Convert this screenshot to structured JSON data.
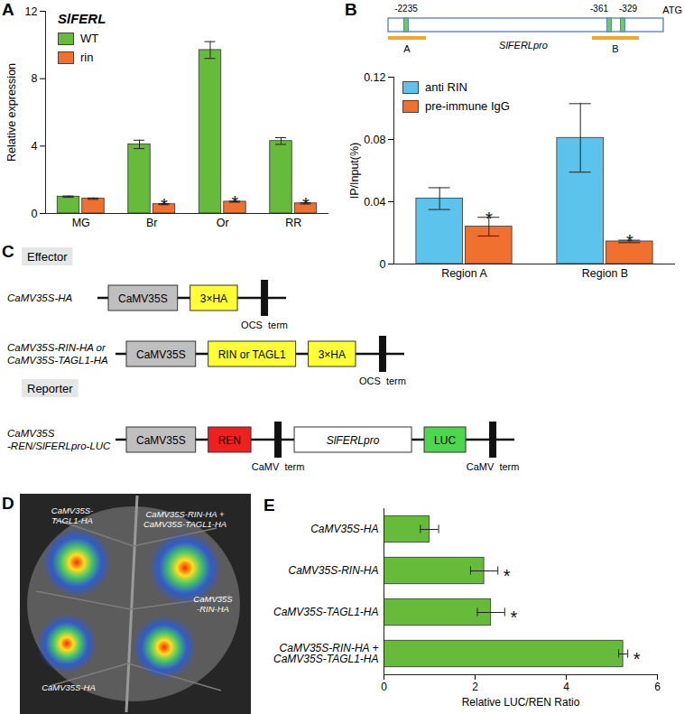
{
  "chart_data": [
    {
      "panel": "A",
      "type": "bar",
      "title": "SlFERL",
      "y_label": "Relative expression",
      "categories": [
        "MG",
        "Br",
        "Or",
        "RR"
      ],
      "series": [
        {
          "name": "WT",
          "color": "#67bb3a",
          "values": [
            1.0,
            4.1,
            9.7,
            4.3
          ],
          "errors": [
            0.04,
            0.25,
            0.5,
            0.2
          ]
        },
        {
          "name": "rin",
          "color": "#f07030",
          "values": [
            0.88,
            0.55,
            0.7,
            0.6
          ],
          "errors": [
            0.04,
            0.03,
            0.03,
            0.04
          ],
          "significance": [
            null,
            "*",
            "*",
            "*"
          ]
        }
      ],
      "ylim": [
        0,
        12
      ],
      "yticks": [
        0,
        4,
        8,
        12
      ],
      "legend": "top-left"
    },
    {
      "panel": "B",
      "type": "bar",
      "y_label": "IP/Input(%)",
      "categories": [
        "Region A",
        "Region B"
      ],
      "series": [
        {
          "name": "anti RIN",
          "color": "#5cc4ec",
          "values": [
            0.042,
            0.081
          ],
          "errors": [
            0.007,
            0.022
          ]
        },
        {
          "name": "pre-immune IgG",
          "color": "#f07030",
          "values": [
            0.024,
            0.0145
          ],
          "errors": [
            0.006,
            0.0008
          ],
          "significance": [
            "*",
            "*"
          ]
        }
      ],
      "ylim": [
        0,
        0.12
      ],
      "yticks": [
        0,
        0.04,
        0.08,
        0.12
      ],
      "legend": "top-left"
    },
    {
      "panel": "E",
      "type": "bar",
      "orientation": "horizontal",
      "x_label": "Relative LUC/REN Ratio",
      "categories": [
        "CaMV35S-HA",
        "CaMV35S-RIN-HA",
        "CaMV35S-TAGL1-HA",
        "CaMV35S-RIN-HA + CaMV35S-TAGL1-HA"
      ],
      "values": [
        1.0,
        2.2,
        2.35,
        5.25
      ],
      "errors": [
        0.2,
        0.3,
        0.3,
        0.1
      ],
      "significance": [
        null,
        "*",
        "*",
        "*"
      ],
      "color": "#67bb3a",
      "xlim": [
        0,
        6
      ],
      "xticks": [
        0,
        2,
        4,
        6
      ]
    }
  ],
  "promoter_map": {
    "panel": "B",
    "name": "SlFERLpro",
    "end_label": "ATG",
    "sites": [
      "-2235",
      "-361",
      "-329"
    ],
    "regions": [
      "A",
      "B"
    ]
  },
  "constructs": {
    "panel": "C",
    "groups": [
      {
        "label": "Effector",
        "items": [
          {
            "name": [
              "CaMV35S-HA"
            ],
            "parts": [
              {
                "text": "CaMV35S",
                "kind": "promoter"
              },
              {
                "text": "3×HA",
                "kind": "tag"
              },
              {
                "text": "OCS  term",
                "kind": "terminator"
              }
            ]
          },
          {
            "name": [
              "CaMV35S-RIN-HA or",
              "CaMV35S-TAGL1-HA"
            ],
            "parts": [
              {
                "text": "CaMV35S",
                "kind": "promoter"
              },
              {
                "text": "RIN or TAGL1",
                "kind": "tag"
              },
              {
                "text": "3×HA",
                "kind": "tag"
              },
              {
                "text": "OCS  term",
                "kind": "terminator"
              }
            ]
          }
        ]
      },
      {
        "label": "Reporter",
        "items": [
          {
            "name": [
              "CaMV35S",
              "-REN/SlFERLpro-LUC"
            ],
            "parts": [
              {
                "text": "CaMV35S",
                "kind": "promoter"
              },
              {
                "text": "REN",
                "kind": "ren"
              },
              {
                "text": "CaMV  term",
                "kind": "terminator"
              },
              {
                "text": "SlFERLpro",
                "kind": "target_promoter"
              },
              {
                "text": "LUC",
                "kind": "luc"
              },
              {
                "text": "CaMV  term",
                "kind": "terminator"
              }
            ]
          }
        ]
      }
    ]
  },
  "leaf_image": {
    "panel": "D",
    "spots": [
      {
        "lines": [
          "CaMV35S-",
          "TAGL1-HA"
        ]
      },
      {
        "lines": [
          "CaMV35S-RIN-HA +",
          "CaMV35S-TAGL1-HA"
        ]
      },
      {
        "lines": [
          "CaMV35S-HA"
        ]
      },
      {
        "lines": [
          "CaMV35S",
          "-RIN-HA"
        ]
      }
    ]
  }
}
